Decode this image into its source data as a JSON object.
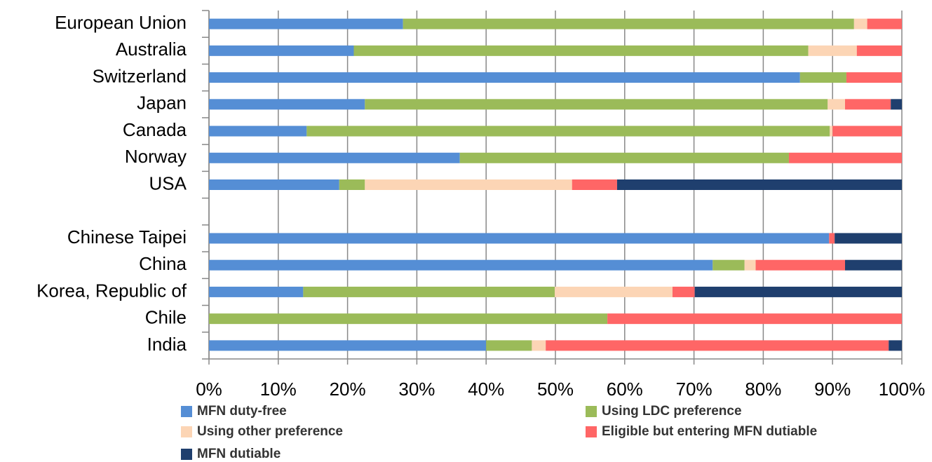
{
  "chart_data": {
    "type": "stacked_barh",
    "categories": [
      "European Union",
      "Australia",
      "Switzerland",
      "Japan",
      "Canada",
      "Norway",
      "USA",
      null,
      "Chinese Taipei",
      "China",
      "Korea, Republic of",
      "Chile",
      "India"
    ],
    "series": [
      {
        "name": "MFN duty-free",
        "color": "#558ed5",
        "values": [
          28.0,
          20.9,
          85.3,
          22.5,
          14.1,
          36.2,
          18.8,
          null,
          89.5,
          72.7,
          13.6,
          0,
          40.0
        ]
      },
      {
        "name": "Using LDC preference",
        "color": "#9bbb59",
        "values": [
          65.1,
          65.6,
          6.7,
          66.8,
          75.5,
          47.5,
          3.7,
          null,
          0,
          4.6,
          36.3,
          57.5,
          6.6
        ]
      },
      {
        "name": "Using other preference",
        "color": "#fcd5b5",
        "values": [
          1.9,
          7.0,
          0,
          2.5,
          0.4,
          0,
          29.9,
          null,
          0,
          1.6,
          17.0,
          0,
          2.0
        ]
      },
      {
        "name": "Eligible but entering MFN dutiable",
        "color": "#ff6666",
        "values": [
          5.0,
          6.5,
          8.0,
          6.6,
          10.0,
          16.3,
          6.5,
          null,
          0.8,
          12.9,
          3.2,
          42.5,
          49.5
        ]
      },
      {
        "name": "MFN dutiable",
        "color": "#1f3f6e",
        "values": [
          0,
          0,
          0,
          1.6,
          0,
          0,
          41.1,
          null,
          9.7,
          8.2,
          29.9,
          0,
          1.9
        ]
      }
    ],
    "xlim": [
      0,
      100
    ],
    "xticks": [
      {
        "value": 0,
        "label": "0%"
      },
      {
        "value": 10,
        "label": "10%"
      },
      {
        "value": 20,
        "label": "20%"
      },
      {
        "value": 30,
        "label": "30%"
      },
      {
        "value": 40,
        "label": "40%"
      },
      {
        "value": 50,
        "label": "50%"
      },
      {
        "value": 60,
        "label": "60%"
      },
      {
        "value": 70,
        "label": "70%"
      },
      {
        "value": 80,
        "label": "80%"
      },
      {
        "value": 90,
        "label": "90%"
      },
      {
        "value": 100,
        "label": "100%"
      }
    ],
    "grid": true,
    "legend": "bottom"
  }
}
